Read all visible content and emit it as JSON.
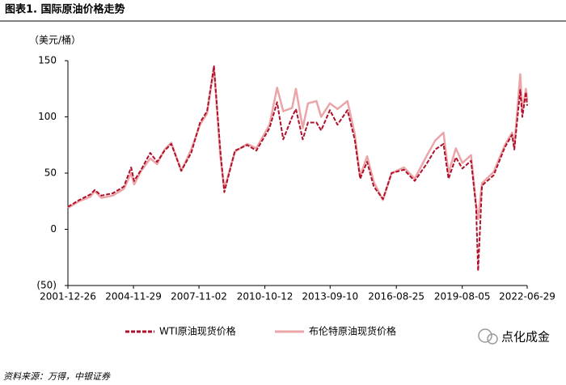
{
  "chart_data": {
    "type": "line",
    "title": "图表1. 国际原油价格走势",
    "y_label": "（美元/桶）",
    "source": "资料来源：万得，中银证券",
    "watermark": "点化成金",
    "x": [
      "2001-12-26",
      "2002-06-26",
      "2002-12-26",
      "2003-03-07",
      "2003-06-26",
      "2003-12-26",
      "2004-06-25",
      "2004-10-22",
      "2004-12-10",
      "2005-04-04",
      "2005-08-30",
      "2005-12-20",
      "2006-04-21",
      "2006-08-07",
      "2007-01-18",
      "2007-06-29",
      "2007-11-20",
      "2008-03-14",
      "2008-07-03",
      "2008-10-16",
      "2008-12-19",
      "2009-06-12",
      "2009-12-28",
      "2010-05-25",
      "2010-12-27",
      "2011-04-29",
      "2011-08-08",
      "2011-12-30",
      "2012-03-02",
      "2012-06-21",
      "2012-09-14",
      "2013-01-30",
      "2013-04-17",
      "2013-09-06",
      "2014-01-09",
      "2014-06-20",
      "2014-10-16",
      "2015-01-13",
      "2015-05-06",
      "2015-08-24",
      "2016-01-20",
      "2016-06-08",
      "2016-12-28",
      "2017-06-21",
      "2017-12-29",
      "2018-05-22",
      "2018-10-03",
      "2018-12-24",
      "2019-04-23",
      "2019-08-07",
      "2019-12-27",
      "2020-03-18",
      "2020-04-20",
      "2020-06-22",
      "2020-12-29",
      "2021-06-30",
      "2021-10-26",
      "2021-12-01",
      "2022-03-08",
      "2022-04-11",
      "2022-06-08",
      "2022-06-29"
    ],
    "series": [
      {
        "name": "布伦特原油现货价格",
        "color": "#eba5a8",
        "dash": false,
        "values": [
          19,
          25,
          29,
          34,
          28,
          30,
          36,
          50,
          40,
          52,
          63,
          58,
          71,
          77,
          52,
          71,
          93,
          103,
          144,
          65,
          36,
          69,
          76,
          72,
          93,
          126,
          105,
          108,
          125,
          90,
          112,
          114,
          100,
          112,
          107,
          114,
          85,
          47,
          65,
          42,
          26,
          50,
          55,
          45,
          65,
          79,
          86,
          50,
          72,
          59,
          66,
          22,
          9,
          41,
          51,
          75,
          86,
          74,
          138,
          105,
          125,
          115
        ]
      },
      {
        "name": "WTI原油现货价格",
        "color": "#b0102a",
        "dash": true,
        "values": [
          20,
          26,
          31,
          35,
          30,
          32,
          38,
          55,
          43,
          53,
          68,
          60,
          70,
          76,
          52,
          68,
          95,
          105,
          145,
          70,
          33,
          70,
          75,
          70,
          90,
          113,
          80,
          100,
          107,
          80,
          95,
          95,
          88,
          106,
          93,
          106,
          80,
          45,
          60,
          38,
          27,
          50,
          53,
          43,
          58,
          71,
          76,
          45,
          64,
          54,
          61,
          20,
          -37,
          39,
          48,
          73,
          84,
          71,
          124,
          100,
          122,
          110
        ]
      }
    ],
    "xlim": [
      "2001-12-26",
      "2022-06-29"
    ],
    "xticks": [
      "2001-12-26",
      "2004-11-29",
      "2007-11-02",
      "2010-10-12",
      "2013-09-10",
      "2016-08-25",
      "2019-08-05",
      "2022-06-29"
    ],
    "ylim": [
      -50,
      150
    ],
    "yticks": [
      {
        "value": -50,
        "label": "(50)"
      },
      0,
      50,
      100,
      150
    ],
    "legend": "bottom",
    "grid": false
  }
}
